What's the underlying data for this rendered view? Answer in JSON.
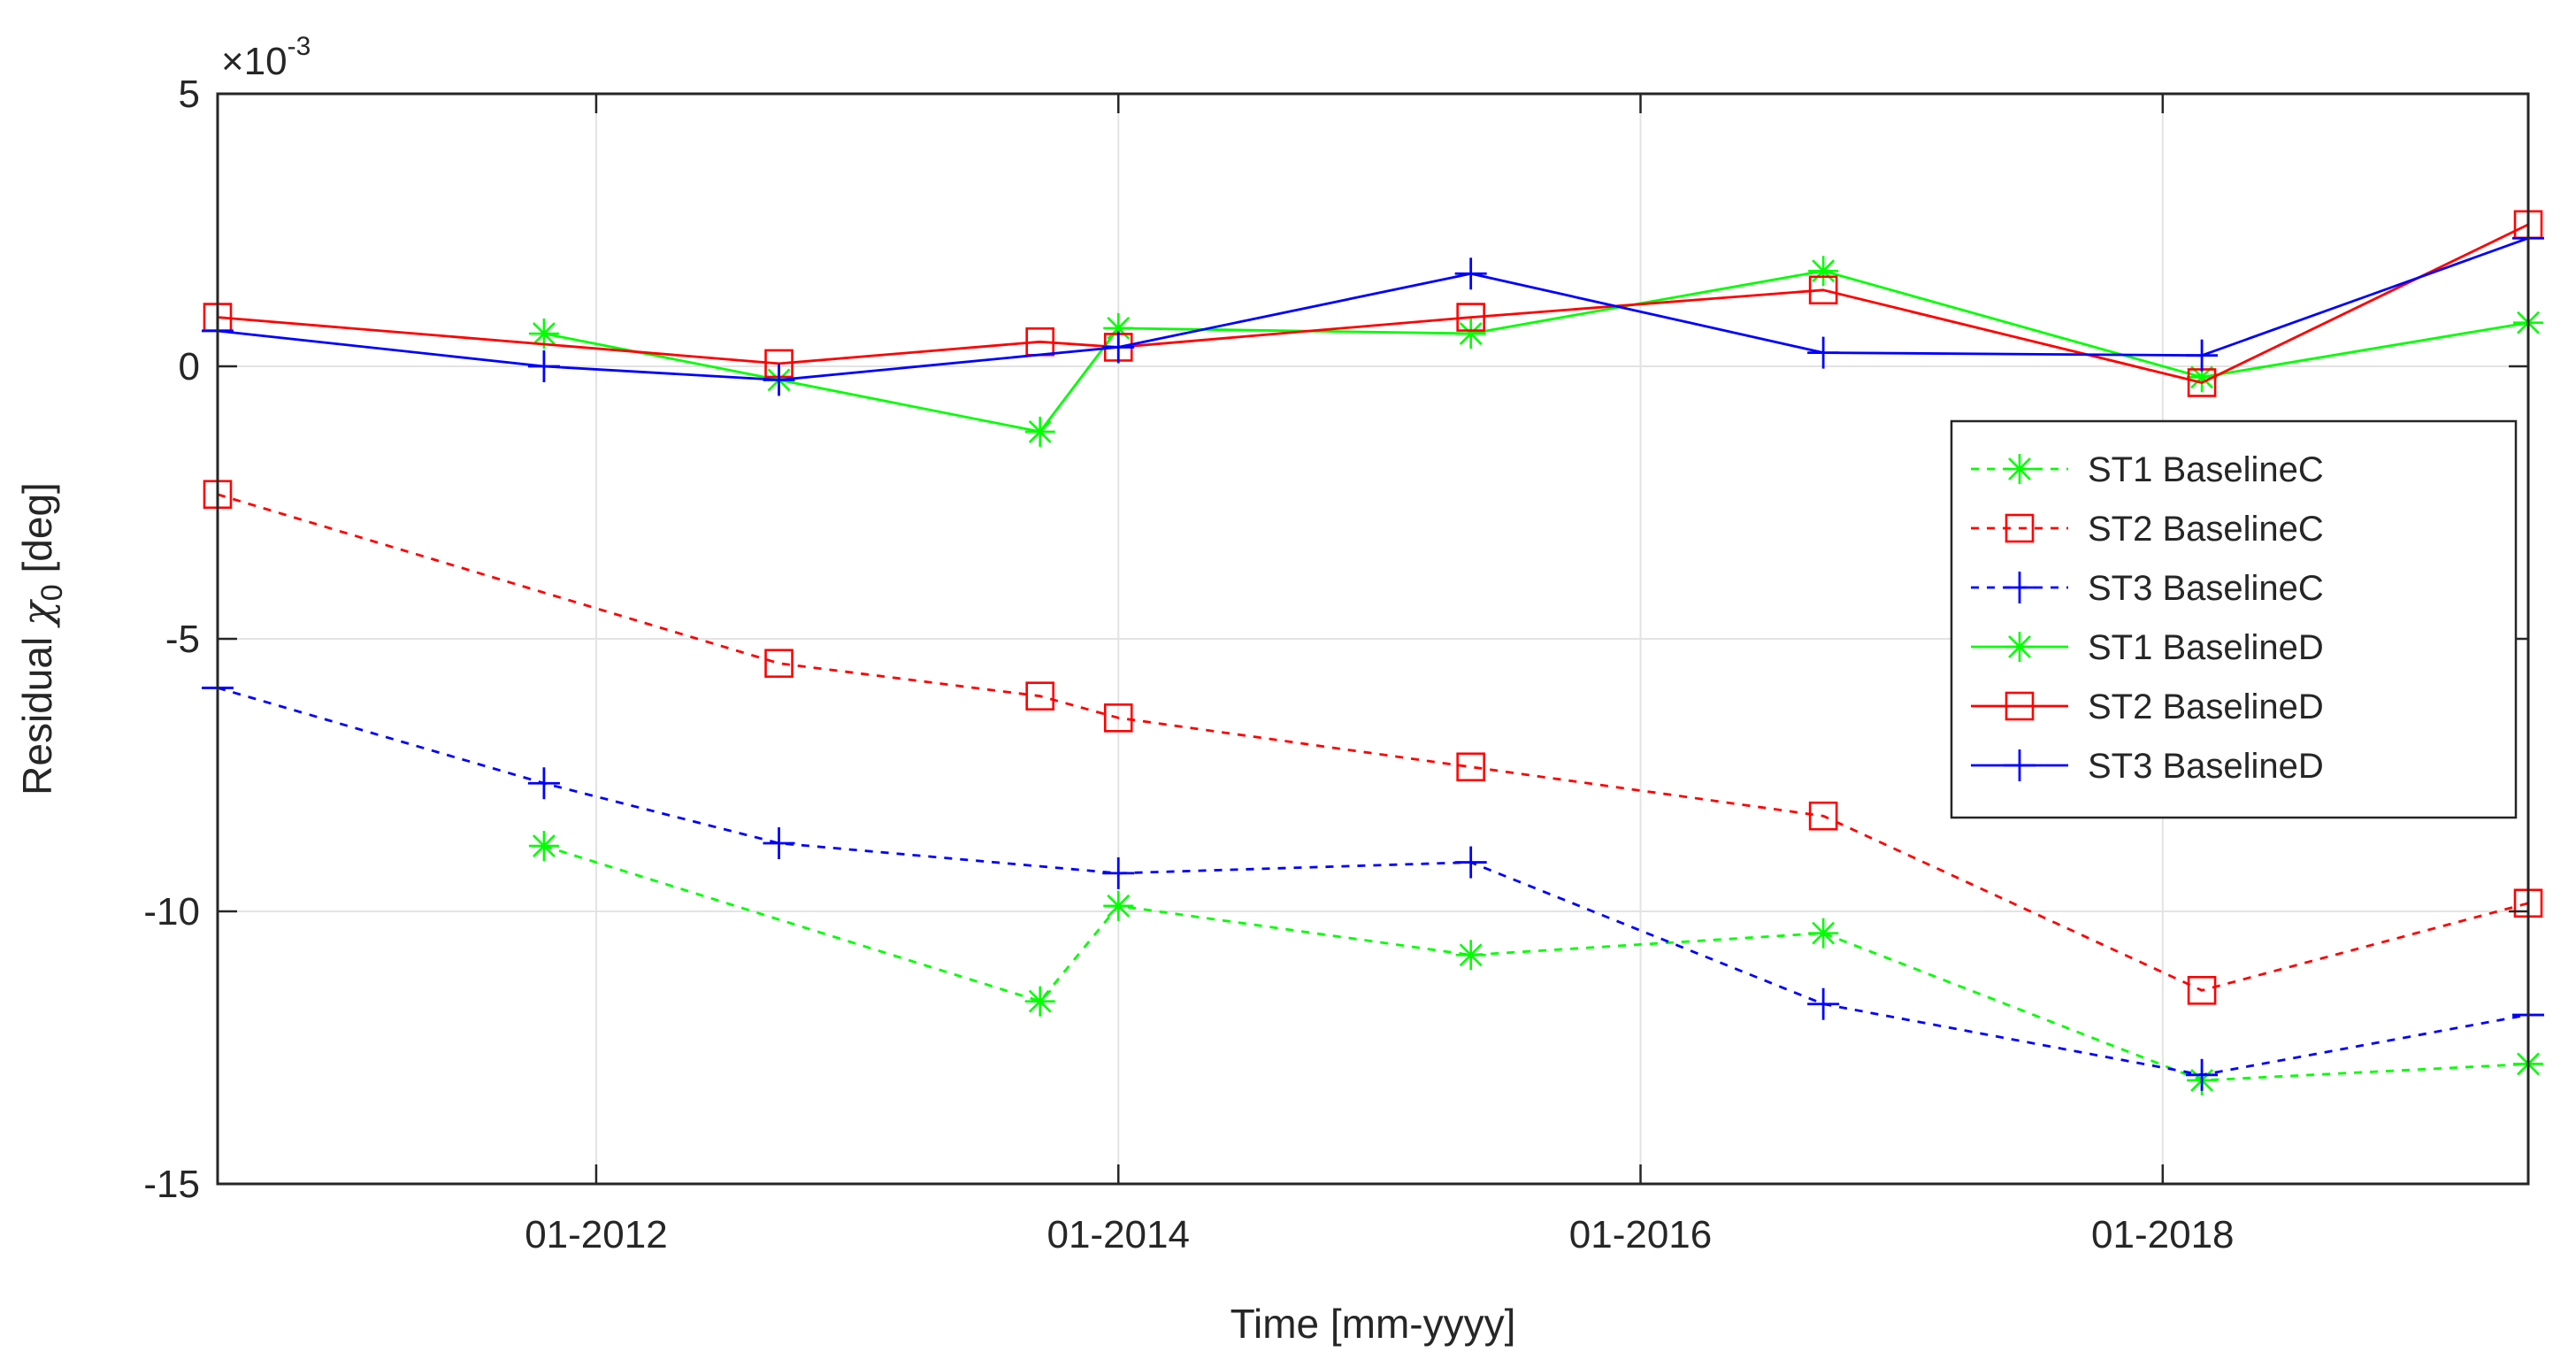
{
  "chart_data": {
    "type": "line",
    "title": "",
    "xlabel": "Time [mm-yyyy]",
    "ylabel_prefix": "Residual ",
    "ylabel_symbol": "χ",
    "ylabel_subscript": "0",
    "ylabel_suffix": " [deg]",
    "y_scale_base": "×10",
    "y_scale_exponent": "-3",
    "xlim": [
      2010.55,
      2019.4
    ],
    "ylim": [
      -15,
      5
    ],
    "grid": true,
    "legend_position": "right",
    "x_ticks": [
      {
        "value": 2012.0,
        "label": "01-2012"
      },
      {
        "value": 2014.0,
        "label": "01-2014"
      },
      {
        "value": 2016.0,
        "label": "01-2016"
      },
      {
        "value": 2018.0,
        "label": "01-2018"
      }
    ],
    "y_ticks": [
      {
        "value": 5,
        "label": "5"
      },
      {
        "value": 0,
        "label": "0"
      },
      {
        "value": -5,
        "label": "-5"
      },
      {
        "value": -10,
        "label": "-10"
      },
      {
        "value": -15,
        "label": "-15"
      }
    ],
    "series": [
      {
        "name": "ST1 BaselineC",
        "color": "#00ff00",
        "dashed": true,
        "marker": "asterisk",
        "x": [
          2011.8,
          2013.7,
          2014.0,
          2015.35,
          2016.7,
          2018.15,
          2019.4
        ],
        "y": [
          -8.8,
          -11.65,
          -9.9,
          -10.8,
          -10.4,
          -13.1,
          -12.8
        ]
      },
      {
        "name": "ST2 BaselineC",
        "color": "#ff0000",
        "dashed": true,
        "marker": "square",
        "x": [
          2010.55,
          2012.7,
          2013.7,
          2014.0,
          2015.35,
          2016.7,
          2018.15,
          2019.4
        ],
        "y": [
          -2.35,
          -5.45,
          -6.05,
          -6.45,
          -7.35,
          -8.25,
          -11.45,
          -9.85
        ]
      },
      {
        "name": "ST3 BaselineC",
        "color": "#0000ff",
        "dashed": true,
        "marker": "plus",
        "x": [
          2010.55,
          2011.8,
          2012.7,
          2014.0,
          2015.35,
          2016.7,
          2018.15,
          2019.4
        ],
        "y": [
          -5.9,
          -7.65,
          -8.75,
          -9.3,
          -9.1,
          -11.7,
          -13.0,
          -11.9
        ]
      },
      {
        "name": "ST1 BaselineD",
        "color": "#00ff00",
        "dashed": false,
        "marker": "asterisk",
        "x": [
          2011.8,
          2012.7,
          2013.7,
          2014.0,
          2015.35,
          2016.7,
          2018.15,
          2019.4
        ],
        "y": [
          0.6,
          -0.25,
          -1.2,
          0.7,
          0.6,
          1.75,
          -0.2,
          0.8
        ]
      },
      {
        "name": "ST2 BaselineD",
        "color": "#ff0000",
        "dashed": false,
        "marker": "square",
        "x": [
          2010.55,
          2012.7,
          2013.7,
          2014.0,
          2015.35,
          2016.7,
          2018.15,
          2019.4
        ],
        "y": [
          0.9,
          0.05,
          0.45,
          0.35,
          0.9,
          1.4,
          -0.3,
          2.6
        ]
      },
      {
        "name": "ST3 BaselineD",
        "color": "#0000ff",
        "dashed": false,
        "marker": "plus",
        "x": [
          2010.55,
          2011.8,
          2012.7,
          2014.0,
          2015.35,
          2016.7,
          2018.15,
          2019.4
        ],
        "y": [
          0.65,
          0.0,
          -0.25,
          0.35,
          1.7,
          0.25,
          0.2,
          2.35
        ]
      }
    ]
  }
}
